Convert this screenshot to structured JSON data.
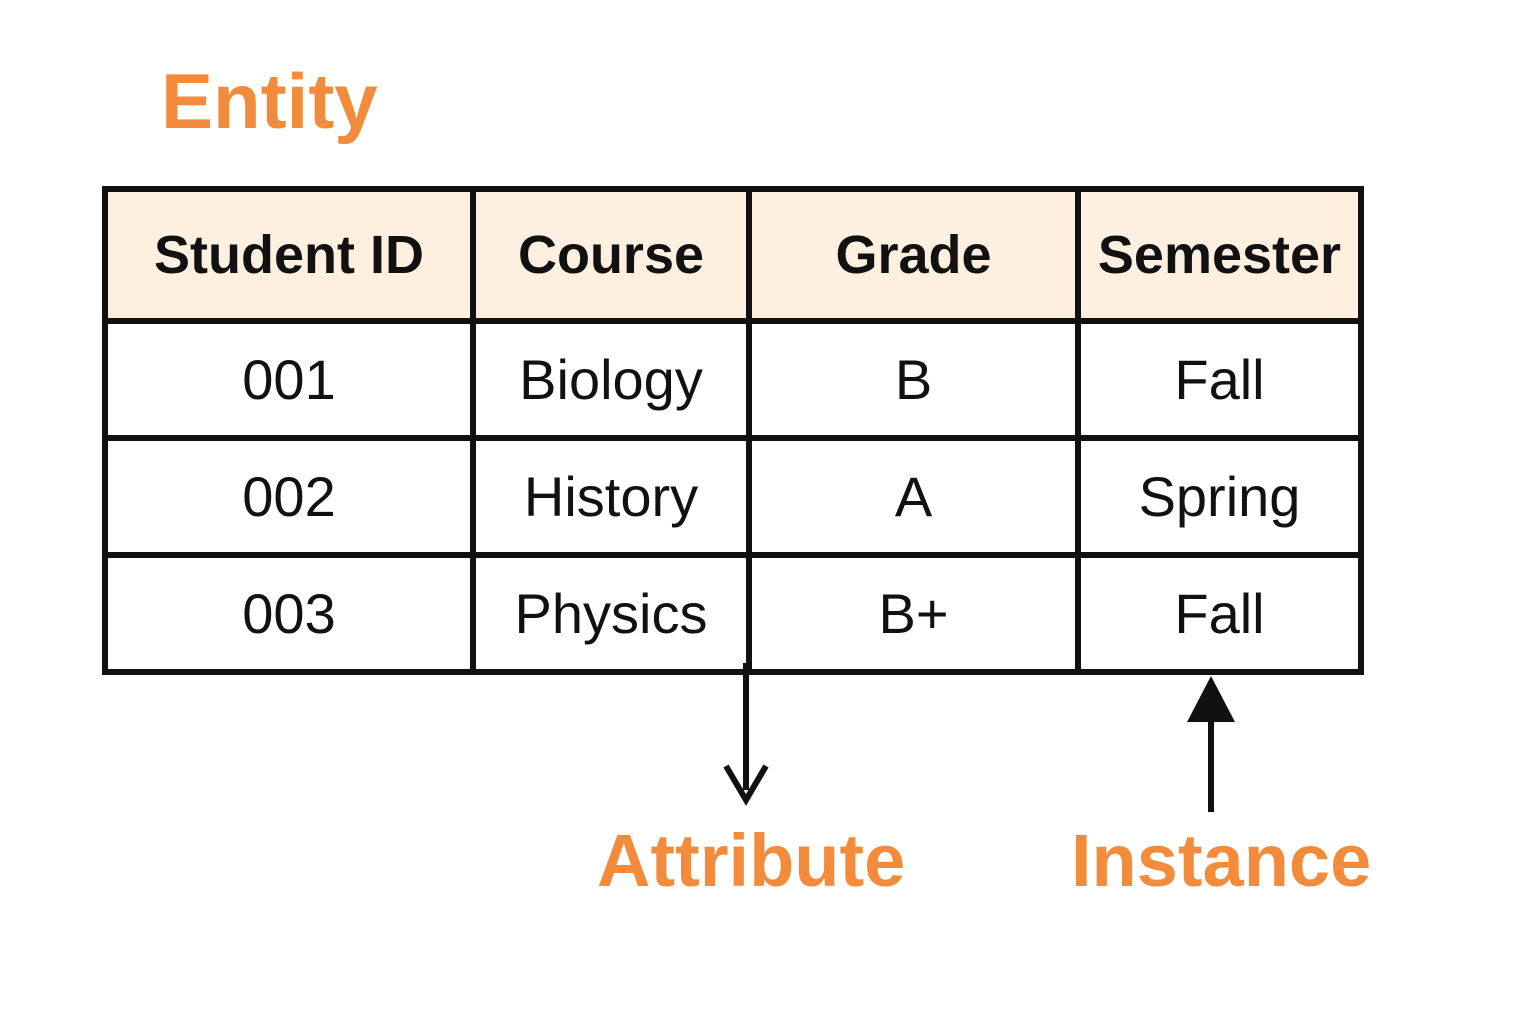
{
  "labels": {
    "entity": "Entity",
    "attribute": "Attribute",
    "instance": "Instance"
  },
  "table": {
    "headers": [
      "Student ID",
      "Course",
      "Grade",
      "Semester"
    ],
    "rows": [
      [
        "001",
        "Biology",
        "B",
        "Fall"
      ],
      [
        "002",
        "History",
        "A",
        "Spring"
      ],
      [
        "003",
        "Physics",
        "B+",
        "Fall"
      ]
    ]
  },
  "colors": {
    "accent_label": "#F28C3C",
    "header_fill": "#FEF0E0",
    "cell_fill": "#FFFFFF",
    "line": "#111111"
  }
}
